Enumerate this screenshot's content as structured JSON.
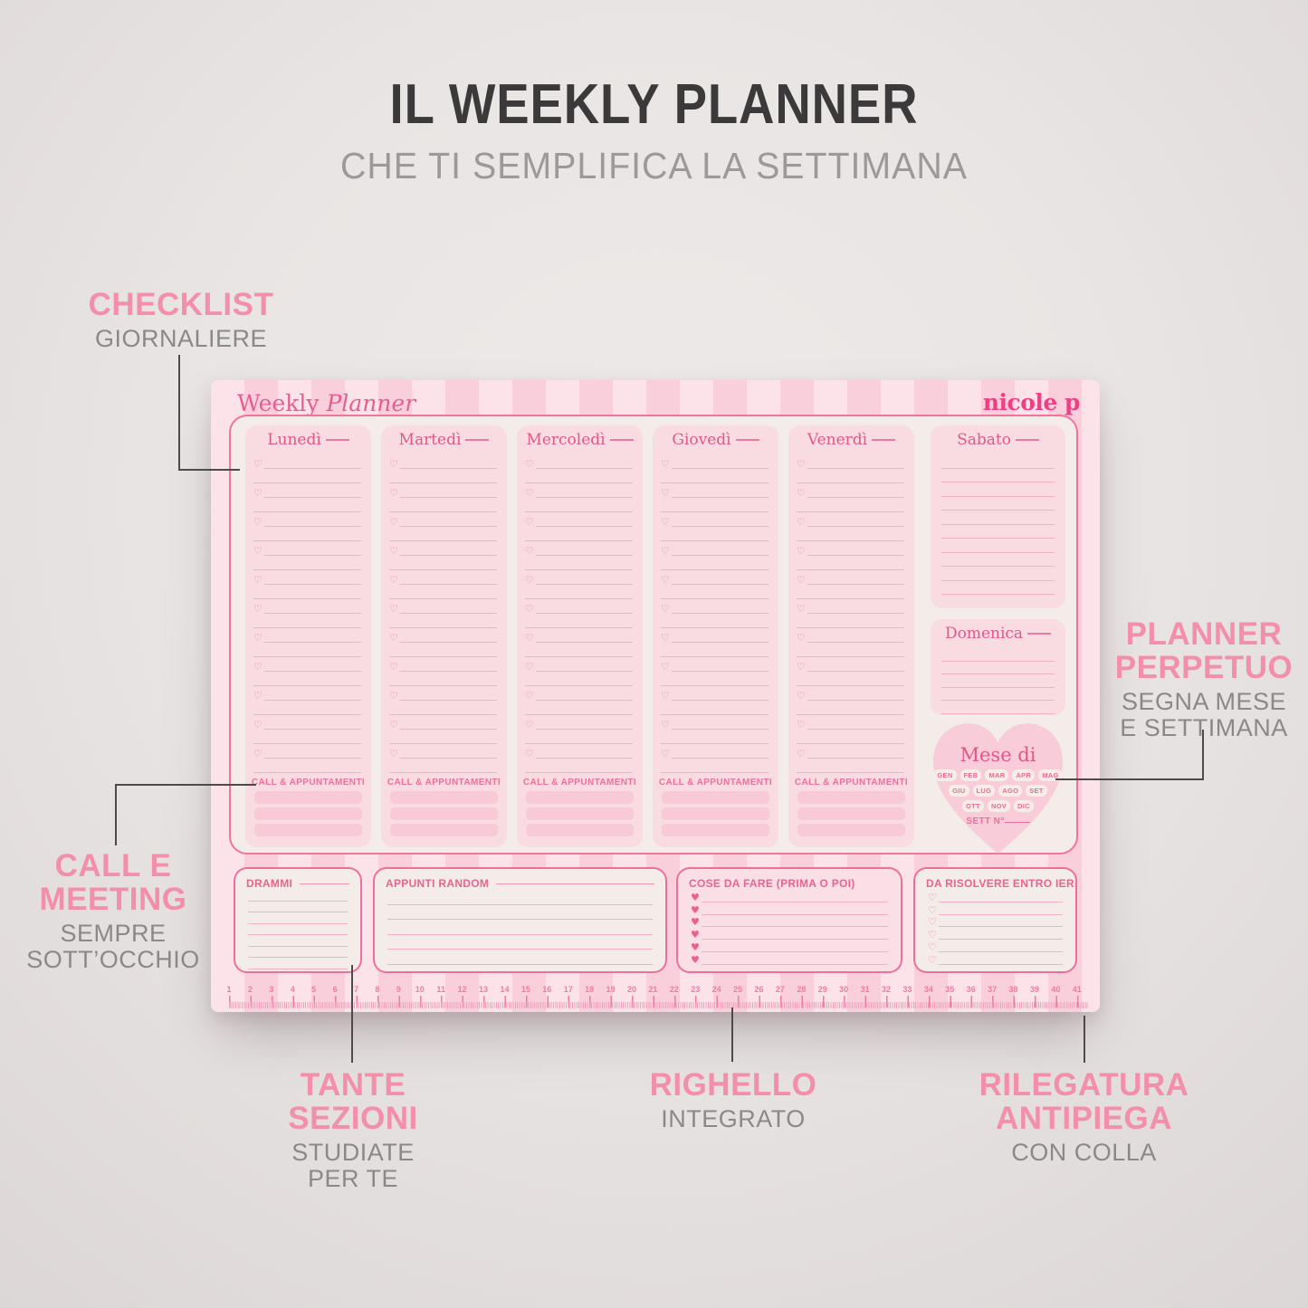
{
  "header": {
    "title": "IL WEEKLY PLANNER",
    "subtitle": "CHE TI SEMPLIFICA LA SETTIMANA"
  },
  "annotations": {
    "checklist": {
      "title": "CHECKLIST",
      "subtitle": "GIORNALIERE"
    },
    "planner_perpetuo": {
      "title": "PLANNER\nPERPETUO",
      "subtitle": "SEGNA MESE\nE SETTIMANA"
    },
    "call_meeting": {
      "title": "CALL E\nMEETING",
      "subtitle": "SEMPRE\nSOTT’OCCHIO"
    },
    "tante_sezioni": {
      "title": "TANTE\nSEZIONI",
      "subtitle": "STUDIATE\nPER TE"
    },
    "righello": {
      "title": "RIGHELLO",
      "subtitle": "INTEGRATO"
    },
    "rilegatura": {
      "title": "RILEGATURA\nANTIPIEGA",
      "subtitle": "CON COLLA"
    }
  },
  "planner": {
    "brand_regular": "Weekly",
    "brand_italic": "Planner",
    "logo": "nicole p",
    "weekdays": [
      "Lunedì",
      "Martedì",
      "Mercoledì",
      "Giovedì",
      "Venerdì"
    ],
    "weekday_checklist_rows": 22,
    "call_label": "CALL & APPUNTAMENTI",
    "call_slots": 3,
    "saturday": {
      "label": "Sabato",
      "rows": 11
    },
    "sunday": {
      "label": "Domenica",
      "rows": 5
    },
    "heart": {
      "title": "Mese di",
      "months": [
        [
          "GEN",
          "FEB",
          "MAR",
          "APR",
          "MAG"
        ],
        [
          "GIU",
          "LUG",
          "AGO",
          "SET"
        ],
        [
          "OTT",
          "NOV",
          "DIC"
        ]
      ],
      "week_label": "SETT N°",
      "week_blank": "____"
    },
    "sections": {
      "drammi": {
        "label": "DRAMMI",
        "rows": 7
      },
      "appunti": {
        "label": "APPUNTI RANDOM",
        "rows": 5
      },
      "cose": {
        "label": "COSE DA FARE (PRIMA O POI)",
        "rows": 6
      },
      "risolvere": {
        "label": "DA RISOLVERE ENTRO IERI",
        "rows": 6
      }
    },
    "ruler": {
      "numbers": [
        1,
        2,
        3,
        4,
        5,
        6,
        7,
        8,
        9,
        10,
        11,
        12,
        13,
        14,
        15,
        16,
        17,
        18,
        19,
        20,
        21,
        22,
        23,
        24,
        25,
        26,
        27,
        28,
        29,
        30,
        31,
        32,
        33,
        34,
        35,
        36,
        37,
        38,
        39,
        40,
        41
      ]
    }
  },
  "colors": {
    "accent_pink": "#f48fab",
    "label_gray": "#8b8888",
    "stripe_dark": "#facfdc",
    "stripe_light": "#fce3e9",
    "ink_pink": "#e2578a",
    "title_dark": "#3b393a"
  }
}
